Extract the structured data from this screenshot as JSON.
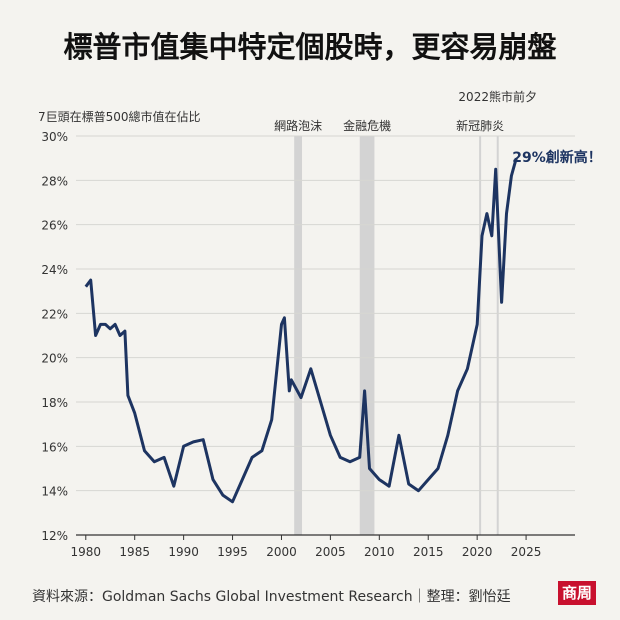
{
  "title": "標普市值集中特定個股時，更容易崩盤",
  "source": "資料來源：Goldman Sachs Global Investment Research｜整理：劉怡廷",
  "logo": "商周",
  "chart_data": {
    "type": "line",
    "ylabel": "7巨頭在標普500總市值在佔比",
    "xlim": [
      1979,
      2030
    ],
    "ylim": [
      12,
      30
    ],
    "x_ticks": [
      1980,
      1985,
      1990,
      1995,
      2000,
      2005,
      2010,
      2015,
      2020,
      2025
    ],
    "y_ticks": [
      "12%",
      "14%",
      "16%",
      "18%",
      "20%",
      "22%",
      "24%",
      "26%",
      "28%",
      "30%"
    ],
    "bands": [
      {
        "label": "網路泡沫",
        "from": 2001.3,
        "to": 2002.1
      },
      {
        "label": "金融危機",
        "from": 2008.0,
        "to": 2009.5
      },
      {
        "label": "新冠肺炎",
        "from": 2020.2,
        "to": 2020.4
      },
      {
        "label": "2022熊市前夕",
        "from": 2022.0,
        "to": 2022.2
      }
    ],
    "annotation": "29%創新高！",
    "series": [
      {
        "x": [
          1980,
          1980.5,
          1981,
          1981.5,
          1982,
          1982.5,
          1983,
          1983.5,
          1984,
          1984.3,
          1985,
          1986,
          1987,
          1988,
          1989,
          1990,
          1991,
          1992,
          1993,
          1994,
          1995,
          1996,
          1997,
          1998,
          1999,
          2000,
          2000.3,
          2000.8,
          2001,
          2002,
          2003,
          2004,
          2005,
          2006,
          2007,
          2008,
          2008.5,
          2009,
          2010,
          2011,
          2012,
          2013,
          2014,
          2015,
          2016,
          2017,
          2018,
          2019,
          2020,
          2020.5,
          2021,
          2021.5,
          2021.9,
          2022.5,
          2023,
          2023.5,
          2024
        ],
        "values": [
          23.2,
          23.5,
          21,
          21.5,
          21.5,
          21.3,
          21.5,
          21,
          21.2,
          18.3,
          17.5,
          15.8,
          15.3,
          15.5,
          14.2,
          16,
          16.2,
          16.3,
          14.5,
          13.8,
          13.5,
          14.5,
          15.5,
          15.8,
          17.2,
          21.5,
          21.8,
          18.5,
          19,
          18.2,
          19.5,
          18,
          16.5,
          15.5,
          15.3,
          15.5,
          18.5,
          15,
          14.5,
          14.2,
          16.5,
          14.3,
          14,
          14.5,
          15,
          16.5,
          18.5,
          19.5,
          21.5,
          25.5,
          26.5,
          25.5,
          28.5,
          22.5,
          26.5,
          28.2,
          29
        ]
      }
    ]
  }
}
